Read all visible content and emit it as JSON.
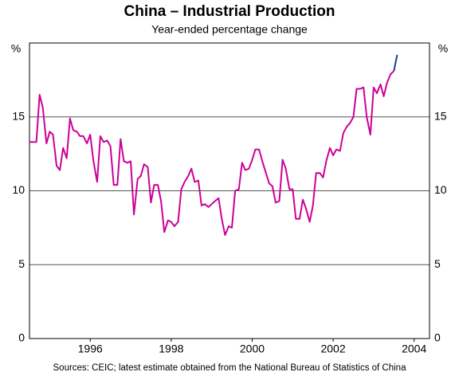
{
  "chart_data": {
    "type": "line",
    "title": "China – Industrial Production",
    "subtitle": "Year-ended percentage change",
    "y_unit_left": "%",
    "y_unit_right": "%",
    "source": "Sources: CEIC; latest estimate obtained from the National Bureau of Statistics of China",
    "x": [
      1995.0,
      1995.08,
      1995.17,
      1995.25,
      1995.33,
      1995.42,
      1995.5,
      1995.58,
      1995.67,
      1995.75,
      1995.83,
      1995.92,
      1996.0,
      1996.08,
      1996.17,
      1996.25,
      1996.33,
      1996.42,
      1996.5,
      1996.58,
      1996.67,
      1996.75,
      1996.83,
      1996.92,
      1997.0,
      1997.08,
      1997.17,
      1997.25,
      1997.33,
      1997.42,
      1997.5,
      1997.58,
      1997.67,
      1997.75,
      1997.83,
      1997.92,
      1998.0,
      1998.08,
      1998.17,
      1998.25,
      1998.33,
      1998.42,
      1998.5,
      1998.58,
      1998.67,
      1998.75,
      1998.83,
      1998.92,
      1999.0,
      1999.08,
      1999.17,
      1999.25,
      1999.33,
      1999.42,
      1999.5,
      1999.58,
      1999.67,
      1999.75,
      1999.83,
      1999.92,
      2000.0,
      2000.08,
      2000.17,
      2000.25,
      2000.33,
      2000.42,
      2000.5,
      2000.58,
      2000.67,
      2000.75,
      2000.83,
      2000.92,
      2001.0,
      2001.08,
      2001.17,
      2001.25,
      2001.33,
      2001.42,
      2001.5,
      2001.58,
      2001.67,
      2001.75,
      2001.83,
      2001.92,
      2002.0,
      2002.08,
      2002.17,
      2002.25,
      2002.33,
      2002.42,
      2002.5,
      2002.58,
      2002.67,
      2002.75,
      2002.83,
      2002.92,
      2003.0,
      2003.08,
      2003.17,
      2003.25,
      2003.33,
      2003.42,
      2003.5,
      2003.58,
      2003.67,
      2003.75,
      2003.83,
      2003.92,
      2004.0,
      2004.08
    ],
    "series": [
      {
        "color": "#cc0099",
        "values": [
          13.3,
          13.3,
          13.3,
          16.5,
          15.6,
          13.2,
          14.0,
          13.8,
          11.7,
          11.4,
          12.9,
          12.2,
          14.9,
          14.1,
          14.0,
          13.7,
          13.7,
          13.2,
          13.8,
          12.0,
          10.6,
          13.7,
          13.3,
          13.4,
          13.0,
          10.4,
          10.4,
          13.5,
          12.0,
          11.9,
          12.0,
          8.4,
          10.8,
          11.0,
          11.8,
          11.6,
          9.2,
          10.4,
          10.4,
          9.3,
          7.2,
          8.0,
          7.9,
          7.6,
          7.9,
          10.1,
          10.6,
          11.0,
          11.5,
          10.6,
          10.7,
          9.0,
          9.1,
          8.9,
          9.1,
          9.3,
          9.5,
          8.1,
          7.0,
          7.6,
          7.5,
          10.0,
          10.1,
          11.9,
          11.4,
          11.5,
          12.1,
          12.8,
          12.8,
          12.0,
          11.3,
          10.5,
          10.3,
          9.2,
          9.3,
          12.1,
          11.5,
          10.1,
          10.1,
          8.1,
          8.1,
          9.4,
          8.8,
          7.9,
          9.0,
          11.2,
          11.2,
          10.9,
          12.0,
          12.9,
          12.4,
          12.8,
          12.7,
          13.9,
          14.3,
          14.6,
          15.0,
          16.9,
          16.9,
          17.0,
          15.0,
          13.8,
          17.0,
          16.6,
          17.2,
          16.4,
          17.3,
          17.9,
          18.1,
          null
        ]
      },
      {
        "color": "#1f3f99",
        "values": [
          null,
          null,
          null,
          null,
          null,
          null,
          null,
          null,
          null,
          null,
          null,
          null,
          null,
          null,
          null,
          null,
          null,
          null,
          null,
          null,
          null,
          null,
          null,
          null,
          null,
          null,
          null,
          null,
          null,
          null,
          null,
          null,
          null,
          null,
          null,
          null,
          null,
          null,
          null,
          null,
          null,
          null,
          null,
          null,
          null,
          null,
          null,
          null,
          null,
          null,
          null,
          null,
          null,
          null,
          null,
          null,
          null,
          null,
          null,
          null,
          null,
          null,
          null,
          null,
          null,
          null,
          null,
          null,
          null,
          null,
          null,
          null,
          null,
          null,
          null,
          null,
          null,
          null,
          null,
          null,
          null,
          null,
          null,
          null,
          null,
          null,
          null,
          null,
          null,
          null,
          null,
          null,
          null,
          null,
          null,
          null,
          null,
          null,
          null,
          null,
          null,
          null,
          null,
          null,
          null,
          null,
          null,
          null,
          18.1,
          19.2
        ]
      }
    ],
    "xlim": [
      1995,
      2004.88
    ],
    "xticks": [
      {
        "value": 1996.5,
        "label": "1996"
      },
      {
        "value": 1998.5,
        "label": "1998"
      },
      {
        "value": 2000.5,
        "label": "2000"
      },
      {
        "value": 2002.5,
        "label": "2002"
      },
      {
        "value": 2004.5,
        "label": "2004"
      }
    ],
    "ylim": [
      0,
      20
    ],
    "yticks": [
      0,
      5,
      10,
      15
    ],
    "grid": true
  }
}
